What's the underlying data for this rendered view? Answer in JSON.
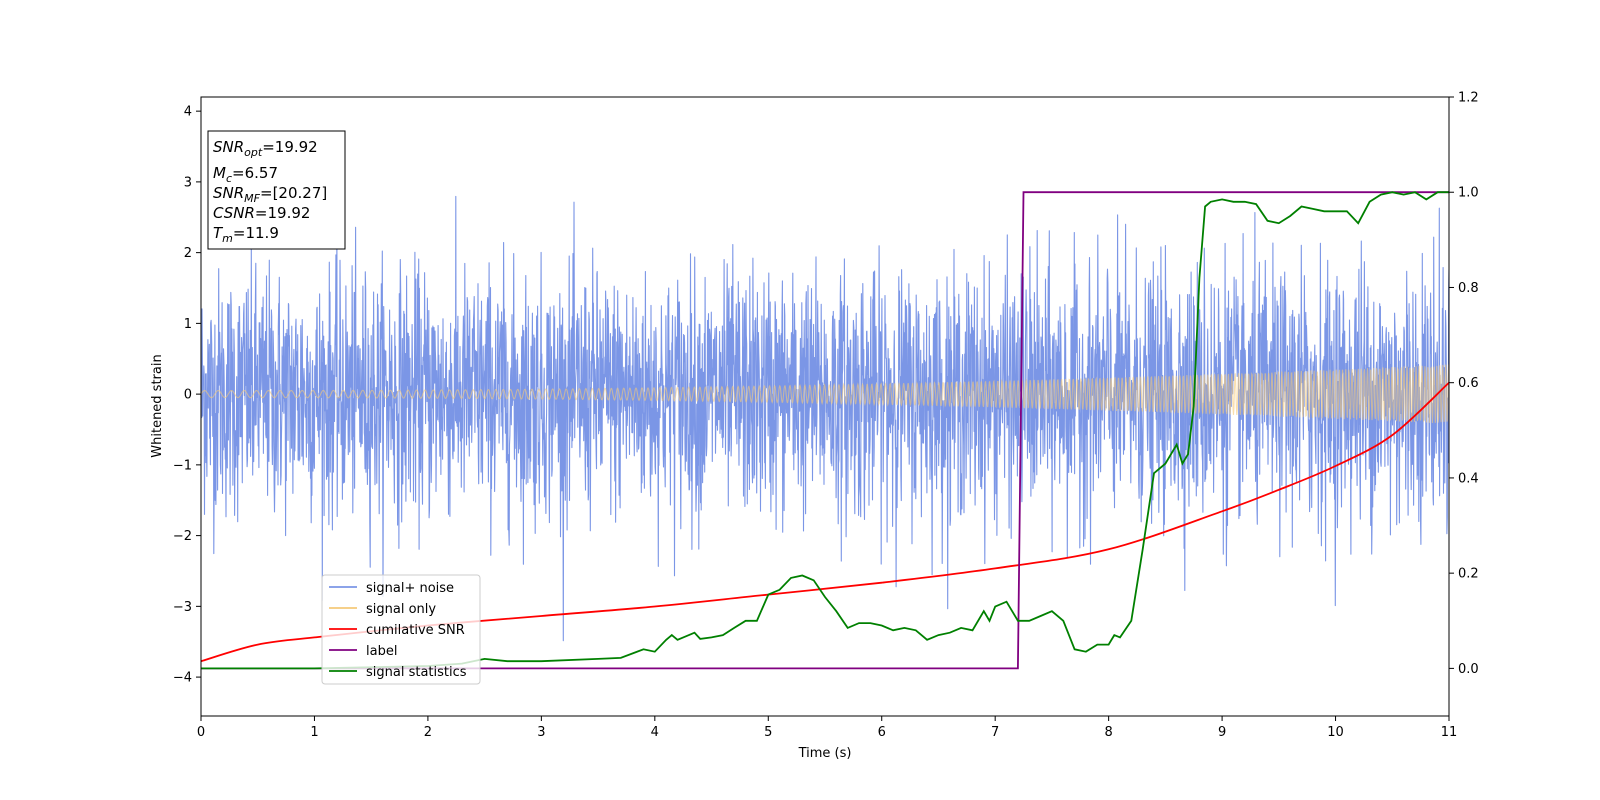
{
  "chart_data": {
    "type": "line",
    "xlabel": "Time (s)",
    "ylabel": "Whitened strain",
    "xlim": [
      0,
      11
    ],
    "ylim_left": [
      -4.55,
      4.2
    ],
    "ylim_right": [
      -0.1,
      1.2
    ],
    "x_ticks": [
      0,
      1,
      2,
      3,
      4,
      5,
      6,
      7,
      8,
      9,
      10,
      11
    ],
    "y_ticks_left": [
      4,
      3,
      2,
      1,
      0,
      -1,
      -2,
      -3,
      -4
    ],
    "y_tick_labels_left": [
      "4",
      "3",
      "2",
      "1",
      "0",
      "−1",
      "−2",
      "−3",
      "−4"
    ],
    "y_ticks_right": [
      1.2,
      1.0,
      0.8,
      0.6,
      0.4,
      0.2,
      0.0
    ],
    "y_tick_labels_right": [
      "1.2",
      "1.0",
      "0.8",
      "0.6",
      "0.4",
      "0.2",
      "0.0"
    ],
    "grid": false,
    "legend_position": "lower-left",
    "annotation": [
      {
        "main": "SNR",
        "sub": "opt",
        "rest": "=19.92"
      },
      {
        "main": "M",
        "sub": "c",
        "rest": "=6.57"
      },
      {
        "main": "SNR",
        "sub": "MF",
        "rest": "=[20.27]"
      },
      {
        "main": "CSNR",
        "sub": "",
        "rest": "=19.92"
      },
      {
        "main": "T",
        "sub": "m",
        "rest": "=11.9"
      }
    ],
    "series": [
      {
        "name": "signal+ noise",
        "color": "#7b96e6",
        "axis": "left",
        "noise_sigma": 0.85,
        "approx_range": [
          -4.2,
          3.8
        ]
      },
      {
        "name": "signal only",
        "color": "#f5c97a",
        "axis": "left",
        "amplitude_start": 0.05,
        "amplitude_end": 0.42
      },
      {
        "name": "cumilative SNR",
        "color": "#ff0000",
        "axis": "right",
        "x": [
          0,
          0.5,
          1,
          2,
          3,
          4,
          5,
          6,
          7,
          8,
          9,
          9.5,
          10,
          10.5,
          11
        ],
        "y": [
          0.015,
          0.05,
          0.065,
          0.09,
          0.11,
          0.13,
          0.155,
          0.18,
          0.21,
          0.25,
          0.33,
          0.375,
          0.425,
          0.49,
          0.6
        ]
      },
      {
        "name": "label",
        "color": "#800080",
        "axis": "right",
        "x": [
          0,
          7.2,
          7.25,
          11
        ],
        "y": [
          0.0,
          0.0,
          1.0,
          1.0
        ]
      },
      {
        "name": "signal statistics",
        "color": "#008000",
        "axis": "right",
        "x": [
          0,
          1,
          2,
          2.3,
          2.5,
          2.7,
          3.0,
          3.5,
          3.7,
          3.9,
          4.0,
          4.1,
          4.15,
          4.2,
          4.3,
          4.35,
          4.4,
          4.5,
          4.6,
          4.7,
          4.8,
          4.9,
          5.0,
          5.1,
          5.2,
          5.3,
          5.4,
          5.5,
          5.6,
          5.7,
          5.8,
          5.9,
          6.0,
          6.1,
          6.2,
          6.3,
          6.4,
          6.5,
          6.6,
          6.7,
          6.8,
          6.9,
          6.95,
          7.0,
          7.1,
          7.2,
          7.3,
          7.4,
          7.5,
          7.6,
          7.7,
          7.8,
          7.9,
          8.0,
          8.05,
          8.1,
          8.2,
          8.3,
          8.4,
          8.5,
          8.6,
          8.65,
          8.7,
          8.75,
          8.8,
          8.85,
          8.9,
          9.0,
          9.1,
          9.2,
          9.3,
          9.4,
          9.5,
          9.6,
          9.7,
          9.8,
          9.9,
          10.0,
          10.1,
          10.2,
          10.3,
          10.4,
          10.5,
          10.6,
          10.7,
          10.8,
          10.9,
          11.0
        ],
        "y": [
          0.0,
          0.0,
          0.005,
          0.01,
          0.02,
          0.015,
          0.015,
          0.02,
          0.022,
          0.04,
          0.035,
          0.06,
          0.07,
          0.06,
          0.07,
          0.075,
          0.062,
          0.065,
          0.07,
          0.085,
          0.1,
          0.1,
          0.155,
          0.165,
          0.19,
          0.195,
          0.185,
          0.15,
          0.12,
          0.085,
          0.095,
          0.095,
          0.09,
          0.08,
          0.085,
          0.08,
          0.06,
          0.07,
          0.075,
          0.085,
          0.08,
          0.12,
          0.1,
          0.13,
          0.14,
          0.1,
          0.1,
          0.11,
          0.12,
          0.1,
          0.04,
          0.035,
          0.05,
          0.05,
          0.07,
          0.065,
          0.1,
          0.25,
          0.41,
          0.43,
          0.47,
          0.43,
          0.45,
          0.55,
          0.82,
          0.97,
          0.98,
          0.985,
          0.98,
          0.98,
          0.975,
          0.94,
          0.935,
          0.95,
          0.97,
          0.965,
          0.96,
          0.96,
          0.96,
          0.935,
          0.98,
          0.995,
          1.0,
          0.995,
          1.0,
          0.985,
          1.0,
          1.0
        ]
      }
    ]
  }
}
